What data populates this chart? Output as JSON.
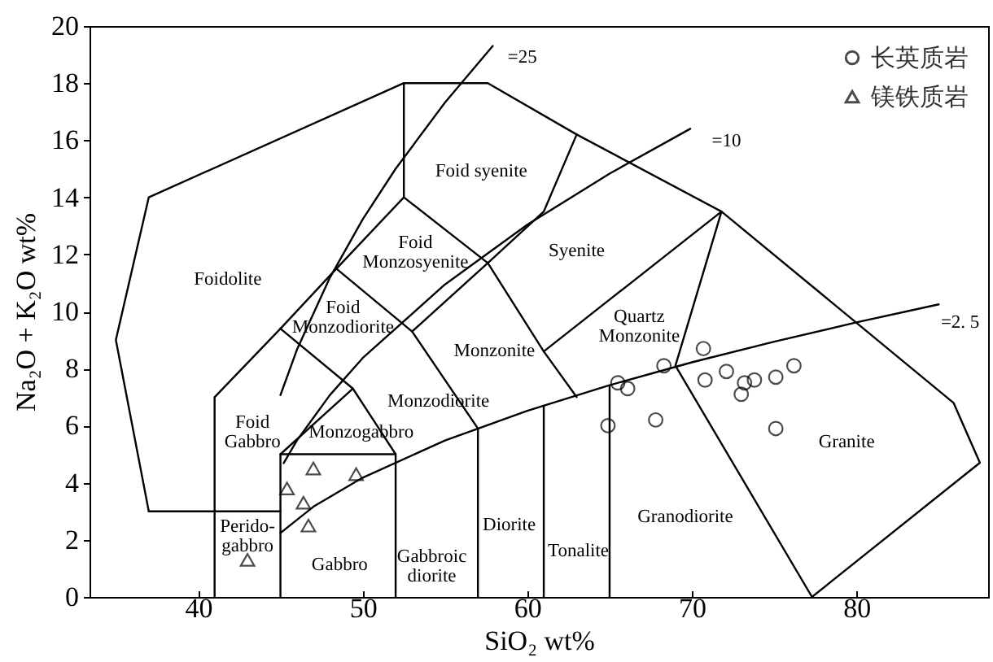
{
  "chart_data": {
    "type": "scatter",
    "xlabel": "SiO₂ wt%",
    "ylabel": "Na₂O + K₂O wt%",
    "xlim": [
      33.4,
      88
    ],
    "ylim": [
      0,
      20
    ],
    "xticks": [
      40,
      50,
      60,
      70,
      80
    ],
    "yticks": [
      0,
      2,
      4,
      6,
      8,
      10,
      12,
      14,
      16,
      18,
      20
    ],
    "grid": false,
    "legend": "top right",
    "series": [
      {
        "name": "长英质岩",
        "marker": "circle",
        "color": "#000000",
        "x": [
          70.7,
          68.3,
          65.5,
          66.1,
          64.9,
          67.8,
          70.8,
          72.1,
          73.2,
          73.8,
          73.0,
          75.1,
          76.2,
          75.1
        ],
        "values": [
          8.7,
          8.1,
          7.5,
          7.3,
          6.0,
          6.2,
          7.6,
          7.9,
          7.5,
          7.6,
          7.1,
          7.7,
          8.1,
          5.9
        ]
      },
      {
        "name": "镁铁质岩",
        "marker": "triangle",
        "color": "#000000",
        "x": [
          47.0,
          45.4,
          46.4,
          46.7,
          49.6,
          43.0
        ],
        "values": [
          4.5,
          3.8,
          3.3,
          2.5,
          4.3,
          1.3
        ]
      },
      {
        "type": "line",
        "color": "#000000",
        "x": [
          41,
          41,
          45,
          48.4,
          52.5,
          52.5
        ],
        "values": [
          0,
          7,
          9.4,
          11.5,
          14,
          18
        ]
      },
      {
        "type": "line",
        "color": "#000000",
        "x": [
          37,
          45
        ],
        "values": [
          3,
          3
        ]
      },
      {
        "type": "line",
        "color": "#000000",
        "x": [
          37,
          35,
          37,
          52.5,
          57.6,
          63,
          71.8,
          85.9,
          87.5,
          77.3
        ],
        "values": [
          3,
          9,
          14,
          18,
          18,
          16.2,
          13.5,
          6.8,
          4.7,
          0
        ]
      },
      {
        "type": "line",
        "color": "#000000",
        "x": [
          45,
          45,
          52,
          52
        ],
        "values": [
          0,
          5,
          5,
          0
        ]
      },
      {
        "type": "line",
        "color": "#000000",
        "x": [
          45,
          49.4,
          52
        ],
        "values": [
          9.4,
          7.3,
          5
        ]
      },
      {
        "type": "line",
        "color": "#000000",
        "x": [
          45,
          49.4
        ],
        "values": [
          5,
          7.3
        ]
      },
      {
        "type": "line",
        "color": "#000000",
        "x": [
          48.4,
          53,
          57,
          57
        ],
        "values": [
          11.5,
          9.3,
          5.9,
          0
        ]
      },
      {
        "type": "line",
        "color": "#000000",
        "x": [
          53,
          57.6,
          52.5
        ],
        "values": [
          9.3,
          11.7,
          14
        ]
      },
      {
        "type": "line",
        "color": "#000000",
        "x": [
          57.6,
          61,
          63
        ],
        "values": [
          11.7,
          13.5,
          16.2
        ]
      },
      {
        "type": "line",
        "color": "#000000",
        "x": [
          57.6,
          61,
          63
        ],
        "values": [
          11.7,
          8.6,
          7
        ]
      },
      {
        "type": "line",
        "color": "#000000",
        "x": [
          61,
          71.8,
          69,
          77.3
        ],
        "values": [
          8.6,
          13.5,
          8.1,
          0
        ]
      },
      {
        "type": "line",
        "color": "#000000",
        "x": [
          61,
          61
        ],
        "values": [
          0,
          6.7
        ]
      },
      {
        "type": "line",
        "color": "#000000",
        "x": [
          65,
          65
        ],
        "values": [
          0,
          7.4
        ]
      },
      {
        "type": "line",
        "color": "#000000",
        "x": [
          45,
          47,
          50,
          55,
          60,
          65,
          70,
          75,
          80,
          85
        ],
        "values": [
          2.24,
          3.16,
          4.18,
          5.48,
          6.52,
          7.42,
          8.22,
          8.94,
          9.62,
          10.25
        ]
      },
      {
        "type": "line",
        "color": "#000000",
        "x": [
          45.2,
          46,
          48,
          50,
          55,
          60,
          65,
          69.9
        ],
        "values": [
          4.69,
          5.48,
          7.07,
          8.37,
          10.95,
          13.04,
          14.83,
          16.4
        ]
      },
      {
        "type": "line",
        "color": "#000000",
        "x": [
          45,
          46,
          48,
          50,
          52,
          55,
          57.9
        ],
        "values": [
          7.07,
          8.66,
          11.18,
          13.23,
          15,
          17.32,
          19.3
        ]
      }
    ],
    "annotations": [
      "Foidolite",
      "Foid syenite",
      "Foid\nMonzosyenite",
      "Foid\nMonzodiorite",
      "Foid\nGabbro",
      "Monzogabbro",
      "Monzodiorite",
      "Monzonite",
      "Syenite",
      "Quartz\nMonzonite",
      "Perido-\ngabbro",
      "Gabbro",
      "Gabbroic\ndiorite",
      "Diorite",
      "Tonalite",
      "Granodiorite",
      "Granite",
      "=25",
      "=10",
      "=2. 5"
    ]
  }
}
